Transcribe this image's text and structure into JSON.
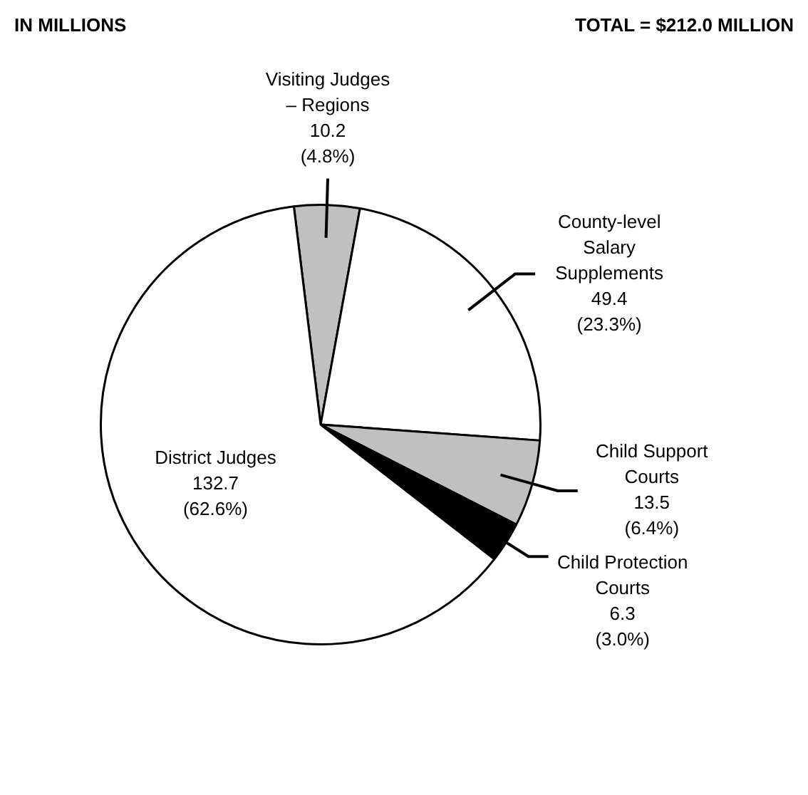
{
  "chart_data": {
    "type": "pie",
    "subtitle": "IN MILLIONS",
    "annotations": [
      "TOTAL = $212.0 MILLION"
    ],
    "categories": [
      "Visiting Judges – Regions",
      "County-level Salary Supplements",
      "Child Support Courts",
      "Child Protection Courts",
      "District Judges"
    ],
    "values": [
      10.2,
      49.4,
      13.5,
      6.3,
      132.7
    ],
    "colors": [
      "#c0c0c0",
      "#ffffff",
      "#c0c0c0",
      "#000000",
      "#ffffff"
    ],
    "value_labels": [
      "10.2 (4.8%)",
      "49.4 (23.3%)",
      "13.5 (6.4%)",
      "6.3 (3.0%)",
      "132.7 (62.6%)"
    ],
    "legend": false
  }
}
